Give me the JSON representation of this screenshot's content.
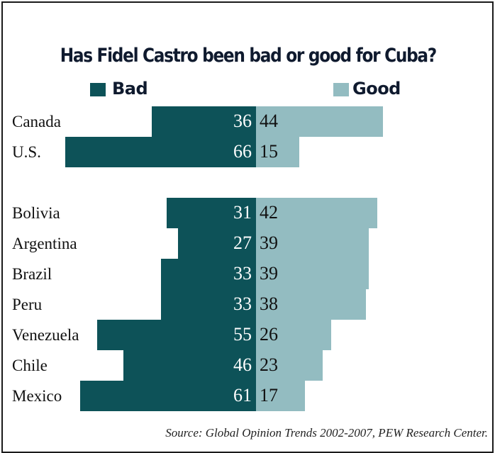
{
  "chart_data": {
    "type": "bar",
    "title": "Has Fidel Castro been bad or good for Cuba?",
    "source": "Source: Global Opinion Trends 2002-2007, PEW Research Center.",
    "categories": [
      "Canada",
      "U.S.",
      "Bolivia",
      "Argentina",
      "Brazil",
      "Peru",
      "Venezuela",
      "Chile",
      "Mexico"
    ],
    "series": [
      {
        "name": "Bad",
        "color": "#0d5258",
        "values": [
          36,
          66,
          31,
          27,
          33,
          33,
          55,
          46,
          61
        ]
      },
      {
        "name": "Good",
        "color": "#93bcc1",
        "values": [
          44,
          15,
          42,
          39,
          39,
          38,
          26,
          23,
          17
        ]
      }
    ],
    "legend_position": "top",
    "grid": false
  }
}
